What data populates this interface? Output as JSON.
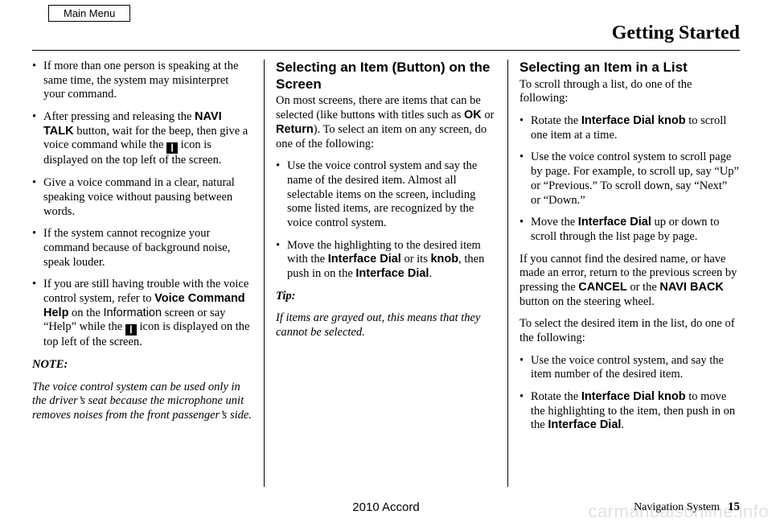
{
  "mainMenu": "Main Menu",
  "headerTitle": "Getting Started",
  "col1": {
    "bullets": {
      "b1": "If more than one person is speaking at the same time, the system may misinterpret your command.",
      "b2a": "After pressing and releasing the ",
      "b2_navi": "NAVI TALK",
      "b2b": " button, wait for the beep, then give a voice command while the ",
      "b2c": " icon is displayed on the top left of the screen.",
      "b3": "Give a voice command in a clear, natural speaking voice without pausing between words.",
      "b4": "If the system cannot recognize your command because of background noise, speak louder.",
      "b5a": "If you are still having trouble with the voice control system, refer to ",
      "b5_vch": "Voice Command Help",
      "b5b": " on the ",
      "b5_info": "Information",
      "b5c": " screen or say “Help” while the ",
      "b5d": " icon is displayed on the top left of the screen."
    },
    "noteLabel": "NOTE:",
    "noteText": "The voice control system can be used only in the driver’s seat because the microphone unit removes noises from the front passenger’s side."
  },
  "col2": {
    "h1": "Selecting an Item (Button) on the Screen",
    "intro_a": "On most screens, there are items that can be selected (like buttons with titles such as ",
    "ok": "OK",
    "intro_b": " or ",
    "ret": "Return",
    "intro_c": "). To select an item on any screen, do one of the following:",
    "bullets": {
      "b1": "Use the voice control system and say the name of the desired item. Almost all selectable items on the screen, including some listed items, are recognized by the voice control system.",
      "b2a": "Move the highlighting to the desired item with the ",
      "b2_id": "Interface Dial",
      "b2b": " or its ",
      "b2_knob": "knob",
      "b2c": ", then push in on the ",
      "b2_id2": "Interface Dial",
      "b2d": "."
    },
    "tipLabel": "Tip:",
    "tipText": "If items are grayed out, this means that they cannot be selected."
  },
  "col3": {
    "h1": "Selecting an Item in a List",
    "intro": "To scroll through a list, do one of the following:",
    "bullets": {
      "b1a": "Rotate the ",
      "b1_idk": "Interface Dial knob",
      "b1b": " to scroll one item at a time.",
      "b2": "Use the voice control system to scroll page by page. For example, to scroll up, say “Up” or “Previous.” To scroll down, say “Next” or “Down.”",
      "b3a": "Move the ",
      "b3_id": "Interface Dial",
      "b3b": " up or down to scroll through the list page by page."
    },
    "p2a": "If you cannot find the desired name, or have made an error, return to the previous screen by pressing the ",
    "p2_cancel": "CANCEL",
    "p2b": " or the ",
    "p2_naviback": "NAVI BACK",
    "p2c": " button on the steering wheel.",
    "p3": "To select the desired item in the list, do one of the following:",
    "bullets2": {
      "b1": "Use the voice control system, and say the item number of the desired item.",
      "b2a": "Rotate the ",
      "b2_idk": "Interface Dial knob",
      "b2b": " to move the highlighting to the item, then push in on the ",
      "b2_id": "Interface Dial",
      "b2c": "."
    }
  },
  "footer": {
    "center": "2010 Accord",
    "rightLabel": "Navigation System",
    "page": "15"
  },
  "watermark": "carmanualsonline.info"
}
